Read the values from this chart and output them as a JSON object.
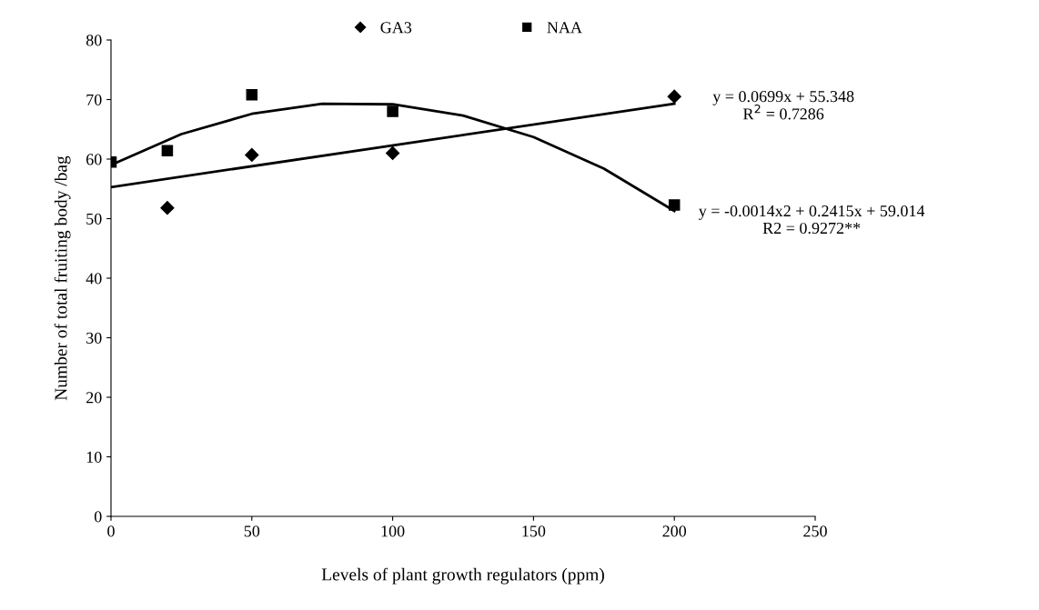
{
  "chart_data": {
    "type": "scatter",
    "xlabel": "Levels of plant growth regulators (ppm)",
    "ylabel": "Number of total fruiting body /bag",
    "xlim": [
      0,
      250
    ],
    "xticks": [
      0,
      50,
      100,
      150,
      200,
      250
    ],
    "ylim": [
      0,
      80
    ],
    "yticks": [
      0,
      10,
      20,
      30,
      40,
      50,
      60,
      70,
      80
    ],
    "grid": false,
    "legend": "top",
    "series": [
      {
        "name": "GA3",
        "marker": "diamond",
        "color": "#000000",
        "x": [
          20,
          50,
          100,
          200
        ],
        "values": [
          51.8,
          60.7,
          61.0,
          70.5
        ]
      },
      {
        "name": "NAA",
        "marker": "square",
        "color": "#000000",
        "x": [
          0,
          20,
          50,
          100,
          200
        ],
        "values": [
          59.5,
          61.4,
          70.8,
          68.0,
          52.3
        ]
      },
      {
        "type": "line",
        "marker": "none",
        "line_style": "solid",
        "color": "#000000",
        "x": [
          0,
          200
        ],
        "values": [
          55.3,
          69.3
        ]
      },
      {
        "type": "line",
        "marker": "none",
        "line_style": "solid",
        "color": "#000000",
        "x": [
          0,
          25,
          50,
          75,
          100,
          125,
          150,
          175,
          200
        ],
        "values": [
          59.0,
          64.2,
          67.6,
          69.3,
          69.2,
          67.3,
          63.7,
          58.4,
          51.3
        ]
      }
    ],
    "annotations": [
      "y = 0.0699x + 55.348\nR$^{2}$ = 0.7286",
      "y = -0.0014x2 + 0.2415x + 59.014\nR2 = 0.9272**"
    ]
  }
}
